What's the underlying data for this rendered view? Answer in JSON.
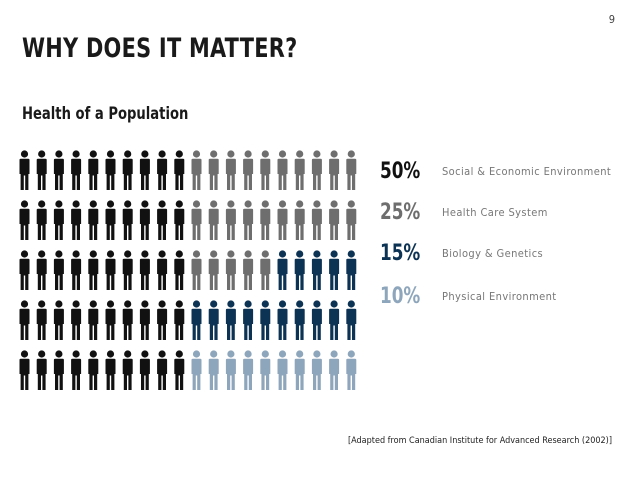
{
  "slide_number": "9",
  "title": "WHY DOES IT MATTER?",
  "subtitle": "Health of a Population",
  "source": "[Adapted from Canadian Institute for Advanced Research (2002)]",
  "colors": {
    "social": "#111111",
    "health_care": "#6e6e6e",
    "biology": "#0d3354",
    "physical": "#8ea6bb"
  },
  "chart_data": {
    "type": "pictograph",
    "title": "Health of a Population",
    "unit": "percent of population health determinants",
    "total_icons": 100,
    "columns": 20,
    "rows": 5,
    "series": [
      {
        "name": "Social & Economic Environment",
        "value": 50,
        "label": "50%",
        "color": "#111111"
      },
      {
        "name": "Health Care System",
        "value": 25,
        "label": "25%",
        "color": "#6e6e6e"
      },
      {
        "name": "Biology & Genetics",
        "value": 15,
        "label": "15%",
        "color": "#0d3354"
      },
      {
        "name": "Physical Environment",
        "value": 10,
        "label": "10%",
        "color": "#8ea6bb"
      }
    ],
    "grid_colors": [
      [
        "social",
        "social",
        "social",
        "social",
        "social",
        "social",
        "social",
        "social",
        "social",
        "social",
        "health_care",
        "health_care",
        "health_care",
        "health_care",
        "health_care",
        "health_care",
        "health_care",
        "health_care",
        "health_care",
        "health_care"
      ],
      [
        "social",
        "social",
        "social",
        "social",
        "social",
        "social",
        "social",
        "social",
        "social",
        "social",
        "health_care",
        "health_care",
        "health_care",
        "health_care",
        "health_care",
        "health_care",
        "health_care",
        "health_care",
        "health_care",
        "health_care"
      ],
      [
        "social",
        "social",
        "social",
        "social",
        "social",
        "social",
        "social",
        "social",
        "social",
        "social",
        "health_care",
        "health_care",
        "health_care",
        "health_care",
        "health_care",
        "biology",
        "biology",
        "biology",
        "biology",
        "biology"
      ],
      [
        "social",
        "social",
        "social",
        "social",
        "social",
        "social",
        "social",
        "social",
        "social",
        "social",
        "biology",
        "biology",
        "biology",
        "biology",
        "biology",
        "biology",
        "biology",
        "biology",
        "biology",
        "biology"
      ],
      [
        "social",
        "social",
        "social",
        "social",
        "social",
        "social",
        "social",
        "social",
        "social",
        "social",
        "physical",
        "physical",
        "physical",
        "physical",
        "physical",
        "physical",
        "physical",
        "physical",
        "physical",
        "physical"
      ]
    ]
  }
}
